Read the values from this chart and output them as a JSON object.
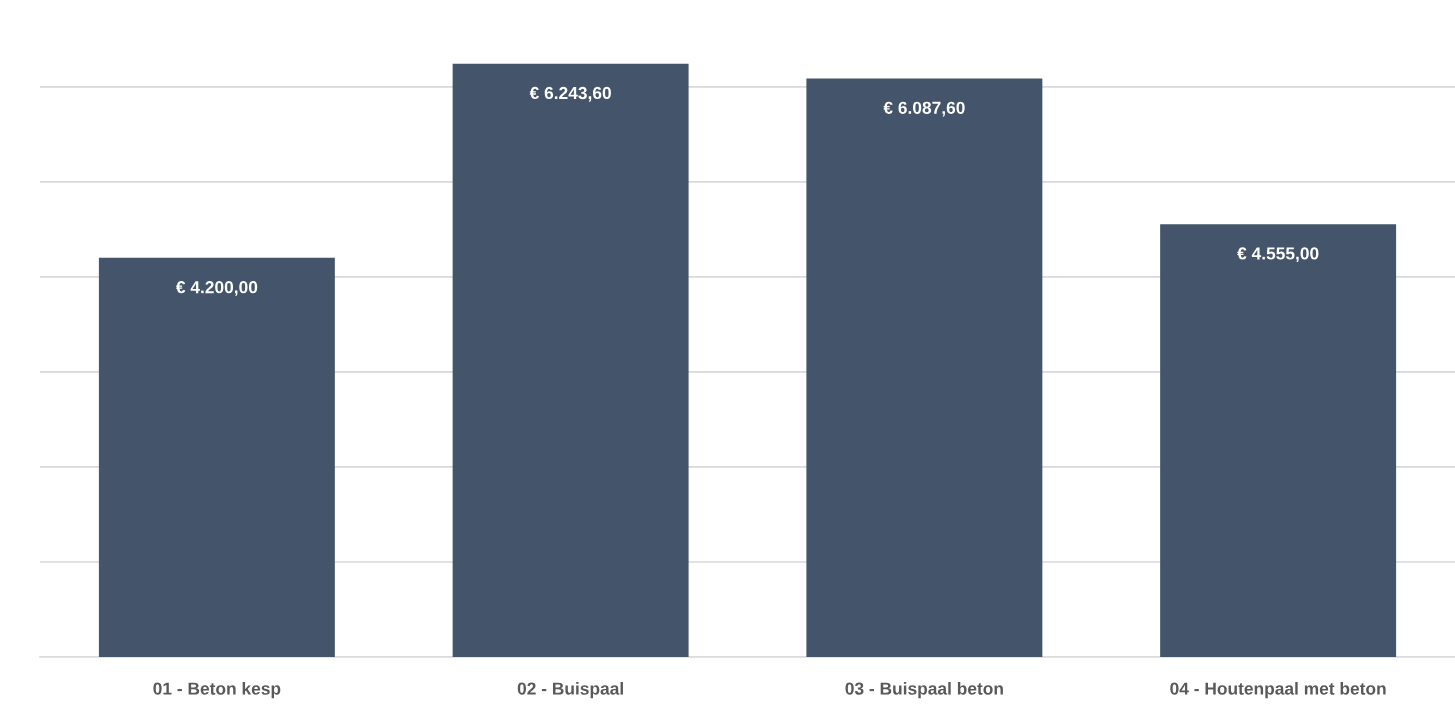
{
  "chart_data": {
    "type": "bar",
    "categories": [
      "01 - Beton kesp",
      "02 - Buispaal",
      "03 - Buispaal beton",
      "04 - Houtenpaal met beton"
    ],
    "values": [
      4200.0,
      6243.6,
      6087.6,
      4555.0
    ],
    "value_labels": [
      "€ 4.200,00",
      "€ 6.243,60",
      "€ 6.087,60",
      "€ 4.555,00"
    ],
    "color": "#44546a",
    "yticks": [
      {
        "value": 0,
        "label": null
      },
      {
        "value": 1000,
        "label": null
      },
      {
        "value": 2000,
        "label": null
      },
      {
        "value": 3000,
        "label": null
      },
      {
        "value": 4000,
        "label": null
      },
      {
        "value": 5000,
        "label": null
      },
      {
        "value": 6000,
        "label": null
      }
    ],
    "grid": "y",
    "tick_labels": "x"
  }
}
